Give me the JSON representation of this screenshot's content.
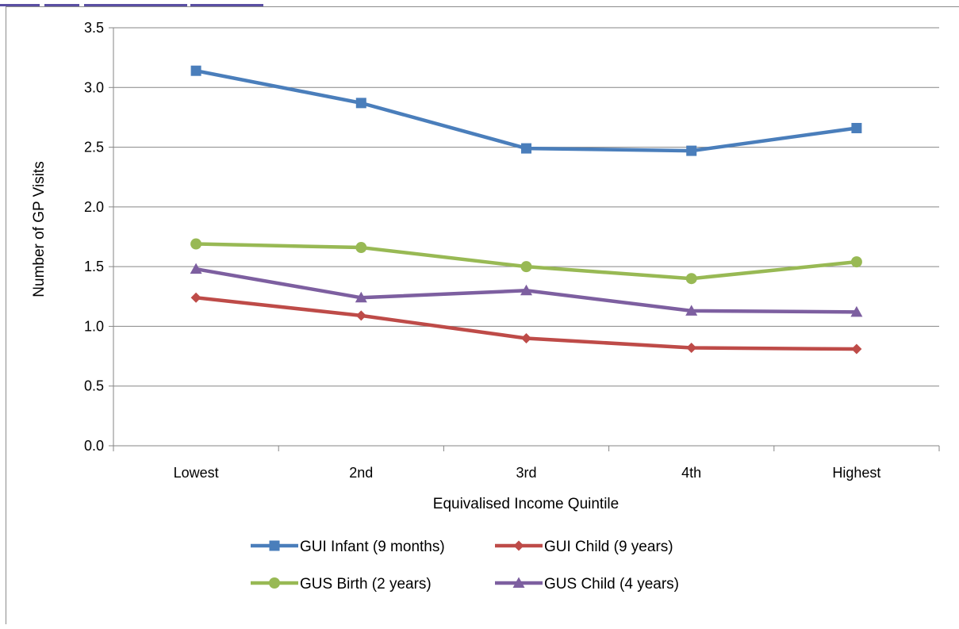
{
  "chart_data": {
    "type": "line",
    "title": "",
    "xlabel": "Equivalised Income Quintile",
    "ylabel": "Number of GP Visits",
    "categories": [
      "Lowest",
      "2nd",
      "3rd",
      "4th",
      "Highest"
    ],
    "ylim": [
      0,
      3.5
    ],
    "yticks": [
      "0.0",
      "0.5",
      "1.0",
      "1.5",
      "2.0",
      "2.5",
      "3.0",
      "3.5"
    ],
    "grid": true,
    "legend_position": "bottom",
    "series": [
      {
        "name": "GUI Infant (9 months)",
        "color": "#4a7ebb",
        "marker": "square",
        "values": [
          3.14,
          2.87,
          2.49,
          2.47,
          2.66
        ]
      },
      {
        "name": "GUI Child (9 years)",
        "color": "#be4b48",
        "marker": "diamond",
        "values": [
          1.24,
          1.09,
          0.9,
          0.82,
          0.81
        ]
      },
      {
        "name": "GUS Birth (2 years)",
        "color": "#98b954",
        "marker": "circle",
        "values": [
          1.69,
          1.66,
          1.5,
          1.4,
          1.54
        ]
      },
      {
        "name": "GUS Child (4 years)",
        "color": "#7d5fa0",
        "marker": "triangle",
        "values": [
          1.48,
          1.24,
          1.3,
          1.13,
          1.12
        ]
      }
    ]
  }
}
